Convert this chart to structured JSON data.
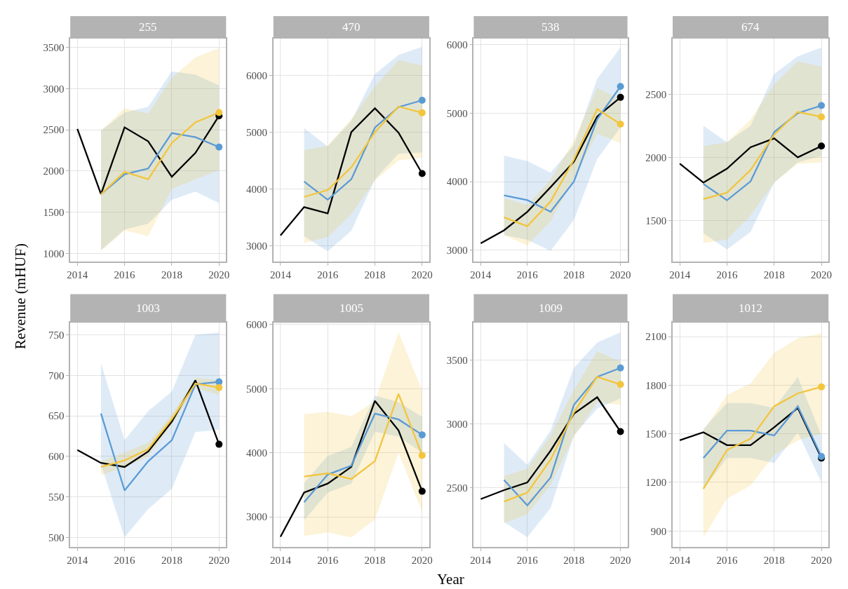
{
  "chart_data": [
    {
      "type": "line",
      "title": "255",
      "annotations": [
        "Year",
        "Revenue (mHUF)"
      ],
      "xlim": [
        2013.7,
        2020.3
      ],
      "xticks": [
        2014,
        2016,
        2018,
        2020
      ],
      "ylim": [
        903,
        3610
      ],
      "yticks": [
        1000,
        1500,
        2000,
        2500,
        3000,
        3500
      ],
      "grid": true,
      "series": [
        {
          "color": "#000000",
          "x": [
            2014,
            2015,
            2016,
            2017,
            2018,
            2019,
            2020
          ],
          "values": [
            2510,
            1720,
            2530,
            2360,
            1930,
            2220,
            2670
          ]
        },
        {
          "color": "#5b9bd5",
          "x": [
            2015,
            2016,
            2017,
            2018,
            2019,
            2020
          ],
          "values": [
            1720,
            1960,
            2030,
            2460,
            2410,
            2290
          ],
          "lower": [
            1040,
            1290,
            1360,
            1650,
            1750,
            1610
          ],
          "upper": [
            2490,
            2710,
            2780,
            3210,
            3170,
            3040
          ]
        },
        {
          "color": "#f2c53d",
          "x": [
            2015,
            2016,
            2017,
            2018,
            2019,
            2020
          ],
          "values": [
            1720,
            1990,
            1900,
            2340,
            2590,
            2710
          ],
          "lower": [
            1030,
            1280,
            1210,
            1780,
            1900,
            2010
          ],
          "upper": [
            2490,
            2760,
            2700,
            3130,
            3380,
            3490
          ]
        },
        {
          "type": "scatter",
          "color": "#000000",
          "x": [
            2020
          ],
          "values": [
            2670
          ]
        },
        {
          "type": "scatter",
          "color": "#5b9bd5",
          "x": [
            2020
          ],
          "values": [
            2290
          ]
        },
        {
          "type": "scatter",
          "color": "#f2c53d",
          "x": [
            2020
          ],
          "values": [
            2710
          ]
        }
      ]
    },
    {
      "type": "line",
      "title": "470",
      "xlim": [
        2013.7,
        2020.3
      ],
      "xticks": [
        2014,
        2016,
        2018,
        2020
      ],
      "ylim": [
        2724,
        6650
      ],
      "yticks": [
        3000,
        4000,
        5000,
        6000
      ],
      "grid": true,
      "series": [
        {
          "color": "#000000",
          "x": [
            2014,
            2015,
            2016,
            2017,
            2018,
            2019,
            2020
          ],
          "values": [
            3180,
            3680,
            3570,
            5000,
            5420,
            4990,
            4270
          ]
        },
        {
          "color": "#5b9bd5",
          "x": [
            2015,
            2016,
            2017,
            2018,
            2019,
            2020
          ],
          "values": [
            4130,
            3810,
            4170,
            5080,
            5440,
            5560
          ],
          "lower": [
            3170,
            2900,
            3260,
            4170,
            4620,
            4640
          ],
          "upper": [
            5070,
            4750,
            5200,
            6020,
            6360,
            6500
          ]
        },
        {
          "color": "#f2c53d",
          "x": [
            2015,
            2016,
            2017,
            2018,
            2019,
            2020
          ],
          "values": [
            3860,
            3980,
            4380,
            5000,
            5450,
            5340
          ],
          "lower": [
            3050,
            3150,
            3550,
            4150,
            4500,
            4550
          ],
          "upper": [
            4680,
            4760,
            5230,
            5800,
            6270,
            6170
          ]
        },
        {
          "type": "scatter",
          "color": "#000000",
          "x": [
            2020
          ],
          "values": [
            4270
          ]
        },
        {
          "type": "scatter",
          "color": "#5b9bd5",
          "x": [
            2020
          ],
          "values": [
            5560
          ]
        },
        {
          "type": "scatter",
          "color": "#f2c53d",
          "x": [
            2020
          ],
          "values": [
            5340
          ]
        }
      ]
    },
    {
      "type": "line",
      "title": "538",
      "xlim": [
        2013.7,
        2020.3
      ],
      "xticks": [
        2014,
        2016,
        2018,
        2020
      ],
      "ylim": [
        2836,
        6091
      ],
      "yticks": [
        3000,
        4000,
        5000,
        6000
      ],
      "grid": true,
      "series": [
        {
          "color": "#000000",
          "x": [
            2014,
            2015,
            2016,
            2017,
            2018,
            2019,
            2020
          ],
          "values": [
            3100,
            3290,
            3560,
            3920,
            4290,
            4950,
            5230
          ]
        },
        {
          "color": "#5b9bd5",
          "x": [
            2015,
            2016,
            2017,
            2018,
            2019,
            2020
          ],
          "values": [
            3800,
            3730,
            3560,
            4000,
            4910,
            5390
          ],
          "lower": [
            3220,
            3150,
            2990,
            3440,
            4330,
            4790
          ],
          "upper": [
            4380,
            4300,
            4130,
            4530,
            5500,
            5960
          ]
        },
        {
          "color": "#f2c53d",
          "x": [
            2015,
            2016,
            2017,
            2018,
            2019,
            2020
          ],
          "values": [
            3480,
            3350,
            3710,
            4320,
            5060,
            4840
          ],
          "lower": [
            3220,
            3070,
            3420,
            4050,
            4700,
            4560
          ],
          "upper": [
            3760,
            3660,
            4030,
            4600,
            5370,
            5200
          ]
        },
        {
          "type": "scatter",
          "color": "#000000",
          "x": [
            2020
          ],
          "values": [
            5230
          ]
        },
        {
          "type": "scatter",
          "color": "#5b9bd5",
          "x": [
            2020
          ],
          "values": [
            5390
          ]
        },
        {
          "type": "scatter",
          "color": "#f2c53d",
          "x": [
            2020
          ],
          "values": [
            4840
          ]
        }
      ]
    },
    {
      "type": "line",
      "title": "674",
      "xlim": [
        2013.7,
        2020.3
      ],
      "xticks": [
        2014,
        2016,
        2018,
        2020
      ],
      "ylim": [
        1176,
        2942
      ],
      "yticks": [
        1500,
        2000,
        2500
      ],
      "grid": true,
      "series": [
        {
          "color": "#000000",
          "x": [
            2014,
            2015,
            2016,
            2017,
            2018,
            2019,
            2020
          ],
          "values": [
            1950,
            1800,
            1910,
            2080,
            2150,
            2000,
            2090
          ]
        },
        {
          "color": "#5b9bd5",
          "x": [
            2015,
            2016,
            2017,
            2018,
            2019,
            2020
          ],
          "values": [
            1790,
            1660,
            1810,
            2200,
            2350,
            2410
          ],
          "lower": [
            1400,
            1270,
            1410,
            1800,
            1960,
            2010
          ],
          "upper": [
            2250,
            2120,
            2250,
            2660,
            2800,
            2870
          ]
        },
        {
          "color": "#f2c53d",
          "x": [
            2015,
            2016,
            2017,
            2018,
            2019,
            2020
          ],
          "values": [
            1670,
            1720,
            1900,
            2180,
            2360,
            2320
          ],
          "lower": [
            1320,
            1350,
            1540,
            1800,
            1950,
            1960
          ],
          "upper": [
            2090,
            2120,
            2300,
            2580,
            2760,
            2720
          ]
        },
        {
          "type": "scatter",
          "color": "#000000",
          "x": [
            2020
          ],
          "values": [
            2090
          ]
        },
        {
          "type": "scatter",
          "color": "#5b9bd5",
          "x": [
            2020
          ],
          "values": [
            2410
          ]
        },
        {
          "type": "scatter",
          "color": "#f2c53d",
          "x": [
            2020
          ],
          "values": [
            2320
          ]
        }
      ]
    },
    {
      "type": "line",
      "title": "1003",
      "xlim": [
        2013.7,
        2020.3
      ],
      "xticks": [
        2014,
        2016,
        2018,
        2020
      ],
      "ylim": [
        488,
        765
      ],
      "yticks": [
        500,
        550,
        600,
        650,
        700,
        750
      ],
      "grid": true,
      "series": [
        {
          "color": "#000000",
          "x": [
            2014,
            2015,
            2016,
            2017,
            2018,
            2019,
            2020
          ],
          "values": [
            608,
            592,
            587,
            606,
            643,
            694,
            615
          ]
        },
        {
          "color": "#5b9bd5",
          "x": [
            2015,
            2016,
            2017,
            2018,
            2019,
            2020
          ],
          "values": [
            653,
            558,
            594,
            620,
            689,
            692
          ],
          "lower": [
            590,
            500,
            535,
            560,
            630,
            633
          ],
          "upper": [
            715,
            620,
            656,
            680,
            750,
            753
          ]
        },
        {
          "color": "#f2c53d",
          "x": [
            2015,
            2016,
            2017,
            2018,
            2019,
            2020
          ],
          "values": [
            587,
            595,
            609,
            646,
            690,
            685
          ],
          "lower": [
            577,
            586,
            600,
            639,
            684,
            676
          ],
          "upper": [
            594,
            605,
            617,
            652,
            697,
            694
          ]
        },
        {
          "type": "scatter",
          "color": "#000000",
          "x": [
            2020
          ],
          "values": [
            615
          ]
        },
        {
          "type": "scatter",
          "color": "#5b9bd5",
          "x": [
            2020
          ],
          "values": [
            692
          ]
        },
        {
          "type": "scatter",
          "color": "#f2c53d",
          "x": [
            2020
          ],
          "values": [
            685
          ]
        }
      ]
    },
    {
      "type": "line",
      "title": "1005",
      "xlim": [
        2013.7,
        2020.3
      ],
      "xticks": [
        2014,
        2016,
        2018,
        2020
      ],
      "ylim": [
        2528,
        6028
      ],
      "yticks": [
        3000,
        4000,
        5000,
        6000
      ],
      "grid": true,
      "series": [
        {
          "color": "#000000",
          "x": [
            2014,
            2015,
            2016,
            2017,
            2018,
            2019,
            2020
          ],
          "values": [
            2690,
            3380,
            3520,
            3780,
            4810,
            4350,
            3400
          ]
        },
        {
          "color": "#5b9bd5",
          "x": [
            2015,
            2016,
            2017,
            2018,
            2019,
            2020
          ],
          "values": [
            3230,
            3660,
            3800,
            4610,
            4520,
            4280
          ],
          "lower": [
            2950,
            3380,
            3520,
            4330,
            4250,
            4000
          ],
          "upper": [
            3530,
            3950,
            4090,
            4890,
            4790,
            4560
          ]
        },
        {
          "color": "#f2c53d",
          "x": [
            2015,
            2016,
            2017,
            2018,
            2019,
            2020
          ],
          "values": [
            3630,
            3680,
            3590,
            3870,
            4920,
            3960
          ],
          "lower": [
            2700,
            2760,
            2680,
            2960,
            4000,
            3080
          ],
          "upper": [
            4600,
            4640,
            4570,
            4800,
            5880,
            4970
          ]
        },
        {
          "type": "scatter",
          "color": "#000000",
          "x": [
            2020
          ],
          "values": [
            3400
          ]
        },
        {
          "type": "scatter",
          "color": "#5b9bd5",
          "x": [
            2020
          ],
          "values": [
            4280
          ]
        },
        {
          "type": "scatter",
          "color": "#f2c53d",
          "x": [
            2020
          ],
          "values": [
            3960
          ]
        }
      ]
    },
    {
      "type": "line",
      "title": "1009",
      "xlim": [
        2013.7,
        2020.3
      ],
      "xticks": [
        2014,
        2016,
        2018,
        2020
      ],
      "ylim": [
        2032,
        3795
      ],
      "yticks": [
        2500,
        3000,
        3500
      ],
      "grid": true,
      "series": [
        {
          "color": "#000000",
          "x": [
            2014,
            2015,
            2016,
            2017,
            2018,
            2019,
            2020
          ],
          "values": [
            2410,
            2480,
            2540,
            2790,
            3080,
            3210,
            2940
          ]
        },
        {
          "color": "#5b9bd5",
          "x": [
            2015,
            2016,
            2017,
            2018,
            2019,
            2020
          ],
          "values": [
            2560,
            2360,
            2580,
            3150,
            3370,
            3440
          ],
          "lower": [
            2230,
            2110,
            2340,
            2910,
            3120,
            3200
          ],
          "upper": [
            2850,
            2680,
            2950,
            3440,
            3640,
            3720
          ]
        },
        {
          "color": "#f2c53d",
          "x": [
            2015,
            2016,
            2017,
            2018,
            2019,
            2020
          ],
          "values": [
            2390,
            2460,
            2720,
            3090,
            3370,
            3310
          ],
          "lower": [
            2220,
            2290,
            2520,
            2900,
            3170,
            3150
          ],
          "upper": [
            2590,
            2650,
            2910,
            3270,
            3570,
            3490
          ]
        },
        {
          "type": "scatter",
          "color": "#000000",
          "x": [
            2020
          ],
          "values": [
            2940
          ]
        },
        {
          "type": "scatter",
          "color": "#5b9bd5",
          "x": [
            2020
          ],
          "values": [
            3440
          ]
        },
        {
          "type": "scatter",
          "color": "#f2c53d",
          "x": [
            2020
          ],
          "values": [
            3310
          ]
        }
      ]
    },
    {
      "type": "line",
      "title": "1012",
      "xlim": [
        2013.7,
        2020.3
      ],
      "xticks": [
        2014,
        2016,
        2018,
        2020
      ],
      "ylim": [
        800,
        2186
      ],
      "yticks": [
        900,
        1200,
        1500,
        1800,
        2100
      ],
      "grid": true,
      "series": [
        {
          "color": "#000000",
          "x": [
            2014,
            2015,
            2016,
            2017,
            2018,
            2019,
            2020
          ],
          "values": [
            1460,
            1510,
            1430,
            1430,
            1540,
            1660,
            1350
          ]
        },
        {
          "color": "#5b9bd5",
          "x": [
            2015,
            2016,
            2017,
            2018,
            2019,
            2020
          ],
          "values": [
            1350,
            1520,
            1520,
            1490,
            1670,
            1360
          ],
          "lower": [
            1160,
            1350,
            1350,
            1320,
            1510,
            1200
          ],
          "upper": [
            1530,
            1690,
            1690,
            1660,
            1850,
            1490
          ]
        },
        {
          "color": "#f2c53d",
          "x": [
            2015,
            2016,
            2017,
            2018,
            2019,
            2020
          ],
          "values": [
            1160,
            1400,
            1470,
            1670,
            1750,
            1790
          ],
          "lower": [
            860,
            1100,
            1180,
            1370,
            1460,
            1500
          ],
          "upper": [
            1520,
            1740,
            1810,
            2000,
            2090,
            2120
          ]
        },
        {
          "type": "scatter",
          "color": "#000000",
          "x": [
            2020
          ],
          "values": [
            1350
          ]
        },
        {
          "type": "scatter",
          "color": "#5b9bd5",
          "x": [
            2020
          ],
          "values": [
            1360
          ]
        },
        {
          "type": "scatter",
          "color": "#f2c53d",
          "x": [
            2020
          ],
          "values": [
            1790
          ]
        }
      ]
    }
  ]
}
